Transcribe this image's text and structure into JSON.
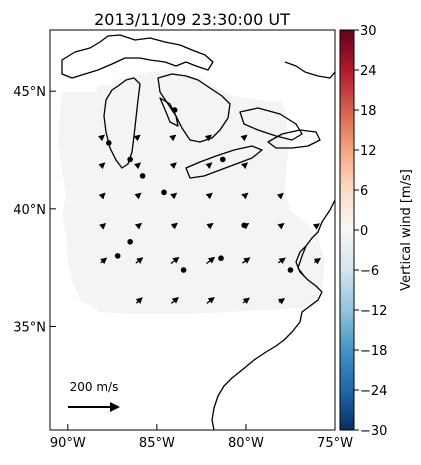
{
  "title": "2013/11/09 23:30:00 UT",
  "map": {
    "lon_range": [
      -91,
      -75
    ],
    "lat_range": [
      30.6,
      47.6
    ],
    "lon_ticks": [
      {
        "value": -90,
        "label": "90°W"
      },
      {
        "value": -85,
        "label": "85°W"
      },
      {
        "value": -80,
        "label": "80°W"
      },
      {
        "value": -75,
        "label": "75°W"
      }
    ],
    "lat_ticks": [
      {
        "value": 45,
        "label": "45°N"
      },
      {
        "value": 40,
        "label": "40°N"
      },
      {
        "value": 35,
        "label": "35°N"
      }
    ],
    "field_color": "#f2f4f6",
    "stations": [
      {
        "lon": -87.7,
        "lat": 42.8
      },
      {
        "lon": -84.0,
        "lat": 44.2
      },
      {
        "lon": -86.5,
        "lat": 42.1
      },
      {
        "lon": -85.8,
        "lat": 41.4
      },
      {
        "lon": -84.6,
        "lat": 40.7
      },
      {
        "lon": -81.3,
        "lat": 42.1
      },
      {
        "lon": -80.1,
        "lat": 39.3
      },
      {
        "lon": -86.5,
        "lat": 38.6
      },
      {
        "lon": -87.2,
        "lat": 38.0
      },
      {
        "lon": -83.5,
        "lat": 37.4
      },
      {
        "lon": -81.4,
        "lat": 37.9
      },
      {
        "lon": -77.5,
        "lat": 37.4
      }
    ],
    "wind_vectors": [
      {
        "lon": -88,
        "lat": 43.1,
        "u": 5,
        "v": 4
      },
      {
        "lon": -86,
        "lat": 43.1,
        "u": 5,
        "v": 4
      },
      {
        "lon": -84,
        "lat": 43.1,
        "u": 5,
        "v": 4
      },
      {
        "lon": -82,
        "lat": 43.1,
        "u": 5,
        "v": 4
      },
      {
        "lon": -80,
        "lat": 43.1,
        "u": 5,
        "v": 4
      },
      {
        "lon": -88,
        "lat": 41.9,
        "u": 8,
        "v": 7
      },
      {
        "lon": -86,
        "lat": 41.9,
        "u": 8,
        "v": 7
      },
      {
        "lon": -84,
        "lat": 41.9,
        "u": 9,
        "v": 8
      },
      {
        "lon": -82,
        "lat": 41.9,
        "u": 9,
        "v": 8
      },
      {
        "lon": -80,
        "lat": 41.9,
        "u": 9,
        "v": 8
      },
      {
        "lon": -88,
        "lat": 40.6,
        "u": 10,
        "v": 10
      },
      {
        "lon": -86,
        "lat": 40.6,
        "u": 12,
        "v": 10
      },
      {
        "lon": -84,
        "lat": 40.6,
        "u": 12,
        "v": 10
      },
      {
        "lon": -82,
        "lat": 40.6,
        "u": 12,
        "v": 10
      },
      {
        "lon": -80,
        "lat": 40.6,
        "u": 12,
        "v": 10
      },
      {
        "lon": -78,
        "lat": 40.6,
        "u": 10,
        "v": 9
      },
      {
        "lon": -88,
        "lat": 39.3,
        "u": 14,
        "v": 12
      },
      {
        "lon": -86,
        "lat": 39.3,
        "u": 16,
        "v": 13
      },
      {
        "lon": -84,
        "lat": 39.3,
        "u": 18,
        "v": 14
      },
      {
        "lon": -82,
        "lat": 39.3,
        "u": 18,
        "v": 13
      },
      {
        "lon": -80,
        "lat": 39.3,
        "u": 18,
        "v": 13
      },
      {
        "lon": -78,
        "lat": 39.3,
        "u": 16,
        "v": 12
      },
      {
        "lon": -76,
        "lat": 39.3,
        "u": 14,
        "v": 10
      },
      {
        "lon": -88,
        "lat": 37.8,
        "u": 22,
        "v": 18
      },
      {
        "lon": -86,
        "lat": 37.8,
        "u": 26,
        "v": 20
      },
      {
        "lon": -84,
        "lat": 37.8,
        "u": 30,
        "v": 23
      },
      {
        "lon": -82,
        "lat": 37.8,
        "u": 30,
        "v": 23
      },
      {
        "lon": -80,
        "lat": 37.8,
        "u": 28,
        "v": 20
      },
      {
        "lon": -78,
        "lat": 37.8,
        "u": 26,
        "v": 18
      },
      {
        "lon": -76,
        "lat": 37.8,
        "u": 22,
        "v": 15
      },
      {
        "lon": -86,
        "lat": 36.1,
        "u": 22,
        "v": 20
      },
      {
        "lon": -84,
        "lat": 36.1,
        "u": 26,
        "v": 22
      },
      {
        "lon": -82,
        "lat": 36.1,
        "u": 28,
        "v": 22
      },
      {
        "lon": -80,
        "lat": 36.1,
        "u": 24,
        "v": 18
      },
      {
        "lon": -78,
        "lat": 36.1,
        "u": 20,
        "v": 14
      }
    ],
    "reference_vector": {
      "label": "200 m/s",
      "value_m_s": 200
    }
  },
  "colorbar": {
    "label": "Vertical wind [m/s]",
    "min": -30,
    "max": 30,
    "tick_labels": [
      "30",
      "24",
      "18",
      "12",
      "6",
      "0",
      "−6",
      "−12",
      "−18",
      "−24",
      "−30"
    ],
    "colors": [
      "#67001f",
      "#b2182b",
      "#d6604d",
      "#f4a582",
      "#fddbc7",
      "#f7f7f7",
      "#d1e5f0",
      "#92c5de",
      "#4393c3",
      "#2166ac",
      "#053061"
    ]
  }
}
